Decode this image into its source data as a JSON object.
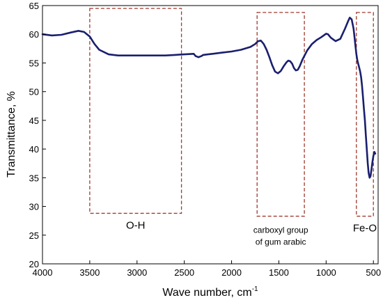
{
  "chart_data": {
    "type": "line",
    "title": "",
    "xlabel": "Wave number, cm",
    "xlabel_superscript": "-1",
    "ylabel": "Transmittance, %",
    "xlim": [
      4000,
      450
    ],
    "ylim": [
      20,
      65
    ],
    "x_ticks": [
      4000,
      3500,
      3000,
      2500,
      2000,
      1500,
      1000,
      500
    ],
    "y_ticks": [
      20,
      25,
      30,
      35,
      40,
      45,
      50,
      55,
      60,
      65
    ],
    "grid": false,
    "line_color": "#1a1f6e",
    "annotation_color": "#a0392c",
    "series": [
      {
        "x": [
          4000,
          3900,
          3800,
          3700,
          3620,
          3560,
          3500,
          3450,
          3400,
          3300,
          3200,
          3100,
          3000,
          2900,
          2800,
          2700,
          2600,
          2500,
          2400,
          2380,
          2350,
          2320,
          2300,
          2250,
          2200,
          2150,
          2100,
          2000,
          1900,
          1800,
          1750,
          1720,
          1690,
          1660,
          1630,
          1600,
          1570,
          1540,
          1510,
          1480,
          1450,
          1420,
          1400,
          1380,
          1360,
          1340,
          1320,
          1300,
          1280,
          1250,
          1200,
          1150,
          1100,
          1050,
          1000,
          980,
          950,
          900,
          850,
          800,
          770,
          750,
          730,
          710,
          700,
          690,
          680,
          670,
          660,
          650,
          640,
          630,
          620,
          610,
          600,
          590,
          580,
          570,
          560,
          550,
          540,
          530,
          520,
          510,
          500,
          490,
          480
        ],
        "y": [
          60.0,
          59.8,
          59.9,
          60.3,
          60.6,
          60.4,
          59.6,
          58.3,
          57.3,
          56.5,
          56.3,
          56.3,
          56.3,
          56.3,
          56.3,
          56.3,
          56.4,
          56.5,
          56.6,
          56.2,
          56.0,
          56.2,
          56.4,
          56.5,
          56.6,
          56.7,
          56.8,
          57.0,
          57.3,
          57.8,
          58.3,
          58.8,
          58.9,
          58.3,
          57.3,
          56.0,
          54.6,
          53.5,
          53.2,
          53.6,
          54.4,
          55.1,
          55.4,
          55.3,
          54.9,
          54.1,
          53.7,
          53.8,
          54.4,
          55.6,
          57.2,
          58.3,
          59.0,
          59.5,
          60.1,
          60.0,
          59.4,
          58.8,
          59.2,
          61.0,
          62.2,
          62.9,
          62.6,
          61.0,
          59.5,
          58.0,
          56.5,
          55.5,
          54.8,
          54.2,
          53.5,
          52.5,
          51.0,
          49.0,
          47.0,
          45.0,
          42.5,
          40.0,
          37.5,
          35.8,
          35.0,
          35.3,
          36.5,
          37.8,
          38.8,
          39.5,
          39.2
        ]
      }
    ],
    "annotations": [
      {
        "label": "O-H",
        "x_range": [
          3500,
          2530
        ],
        "y_range": [
          28.8,
          64.5
        ]
      },
      {
        "label": "carboxyl group\nof gum arabic",
        "x_range": [
          1730,
          1230
        ],
        "y_range": [
          28.3,
          63.8
        ]
      },
      {
        "label": "Fe-O",
        "x_range": [
          680,
          500
        ],
        "y_range": [
          28.3,
          63.8
        ]
      }
    ]
  }
}
